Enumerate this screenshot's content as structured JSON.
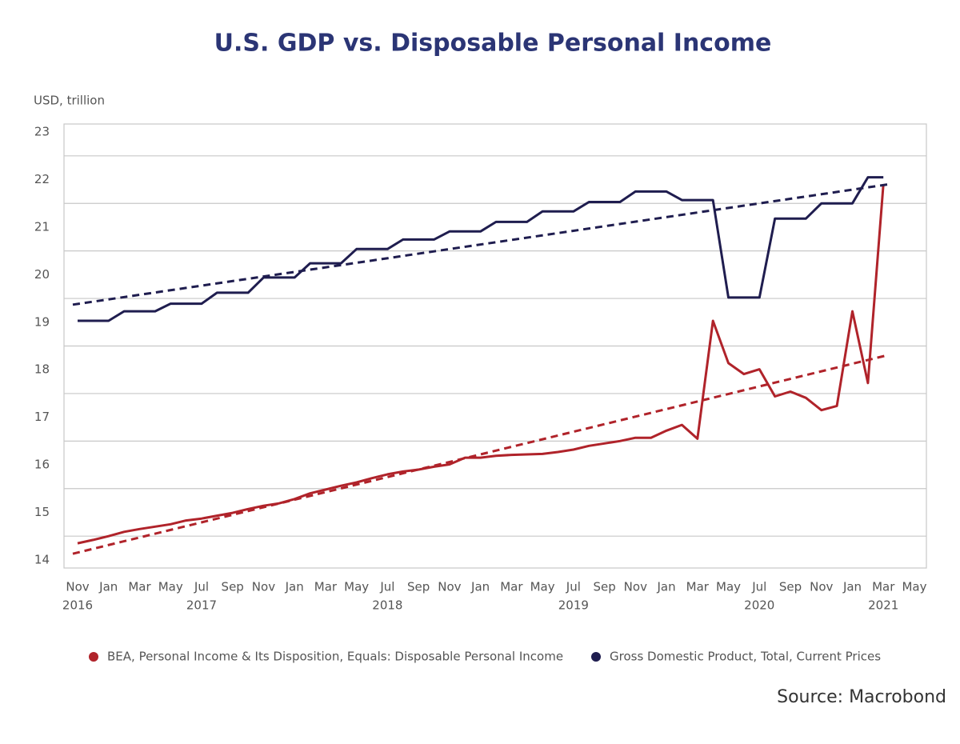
{
  "chart_data": {
    "type": "line",
    "title": "U.S. GDP vs. Disposable Personal Income",
    "y_axis_label": "USD, trillion",
    "source": "Source: Macrobond",
    "categories": [
      "Nov",
      null,
      "Jan",
      null,
      "Mar",
      null,
      "May",
      null,
      "Jul",
      null,
      "Sep",
      null,
      "Nov",
      null,
      "Jan",
      null,
      "Mar",
      null,
      "May",
      null,
      "Jul",
      null,
      "Sep",
      null,
      "Nov",
      null,
      "Jan",
      null,
      "Mar",
      null,
      "May",
      null,
      "Jul",
      null,
      "Sep",
      null,
      "Nov",
      null,
      "Jan",
      null,
      "Mar",
      null,
      "May",
      null,
      "Jul",
      null,
      "Sep",
      null,
      "Nov",
      null,
      "Jan",
      null,
      "Mar",
      null,
      "May"
    ],
    "years": [
      "2016",
      null,
      null,
      null,
      null,
      null,
      null,
      null,
      "2017",
      null,
      null,
      null,
      null,
      null,
      null,
      null,
      null,
      null,
      null,
      null,
      "2018",
      null,
      null,
      null,
      null,
      null,
      null,
      null,
      null,
      null,
      null,
      null,
      "2019",
      null,
      null,
      null,
      null,
      null,
      null,
      null,
      null,
      null,
      null,
      null,
      "2020",
      null,
      null,
      null,
      null,
      null,
      null,
      null,
      "2021",
      null,
      null
    ],
    "ylim": [
      13.83,
      23.17
    ],
    "yticks": [
      14,
      15,
      16,
      17,
      18,
      19,
      20,
      21,
      22,
      23
    ],
    "grid_lines": [
      14.5,
      15.5,
      16.5,
      17.5,
      18.5,
      19.5,
      20.5,
      21.5,
      22.5
    ],
    "series": [
      {
        "name": "BEA, Personal Income & Its Disposition, Equals: Disposable Personal Income",
        "color": "#b0232a",
        "values": [
          14.35,
          14.42,
          14.5,
          14.59,
          14.65,
          14.7,
          14.75,
          14.83,
          14.87,
          14.93,
          14.99,
          15.07,
          15.14,
          15.19,
          15.28,
          15.4,
          15.48,
          15.56,
          15.63,
          15.72,
          15.8,
          15.86,
          15.9,
          15.96,
          16.01,
          16.15,
          16.15,
          16.19,
          16.21,
          16.22,
          16.23,
          16.27,
          16.32,
          16.4,
          16.45,
          16.5,
          16.57,
          16.57,
          16.72,
          16.84,
          16.55,
          19.03,
          18.14,
          17.91,
          18.01,
          17.44,
          17.54,
          17.41,
          17.15,
          17.24,
          19.23,
          17.72,
          21.9,
          null,
          null
        ],
        "trend": {
          "start": 14.13,
          "end": 18.31
        }
      },
      {
        "name": "Gross Domestic Product, Total, Current Prices",
        "color": "#1f1d4f",
        "values": [
          19.03,
          19.03,
          19.03,
          19.23,
          19.23,
          19.23,
          19.39,
          19.39,
          19.39,
          19.62,
          19.62,
          19.62,
          19.94,
          19.94,
          19.94,
          20.24,
          20.24,
          20.24,
          20.54,
          20.54,
          20.54,
          20.74,
          20.74,
          20.74,
          20.91,
          20.91,
          20.91,
          21.11,
          21.11,
          21.11,
          21.33,
          21.33,
          21.33,
          21.53,
          21.53,
          21.53,
          21.75,
          21.75,
          21.75,
          21.57,
          21.57,
          21.57,
          19.52,
          19.52,
          19.52,
          21.18,
          21.18,
          21.18,
          21.5,
          21.5,
          21.5,
          22.05,
          22.05,
          null,
          null
        ],
        "trend": {
          "start": 19.37,
          "end": 21.9
        }
      }
    ]
  }
}
